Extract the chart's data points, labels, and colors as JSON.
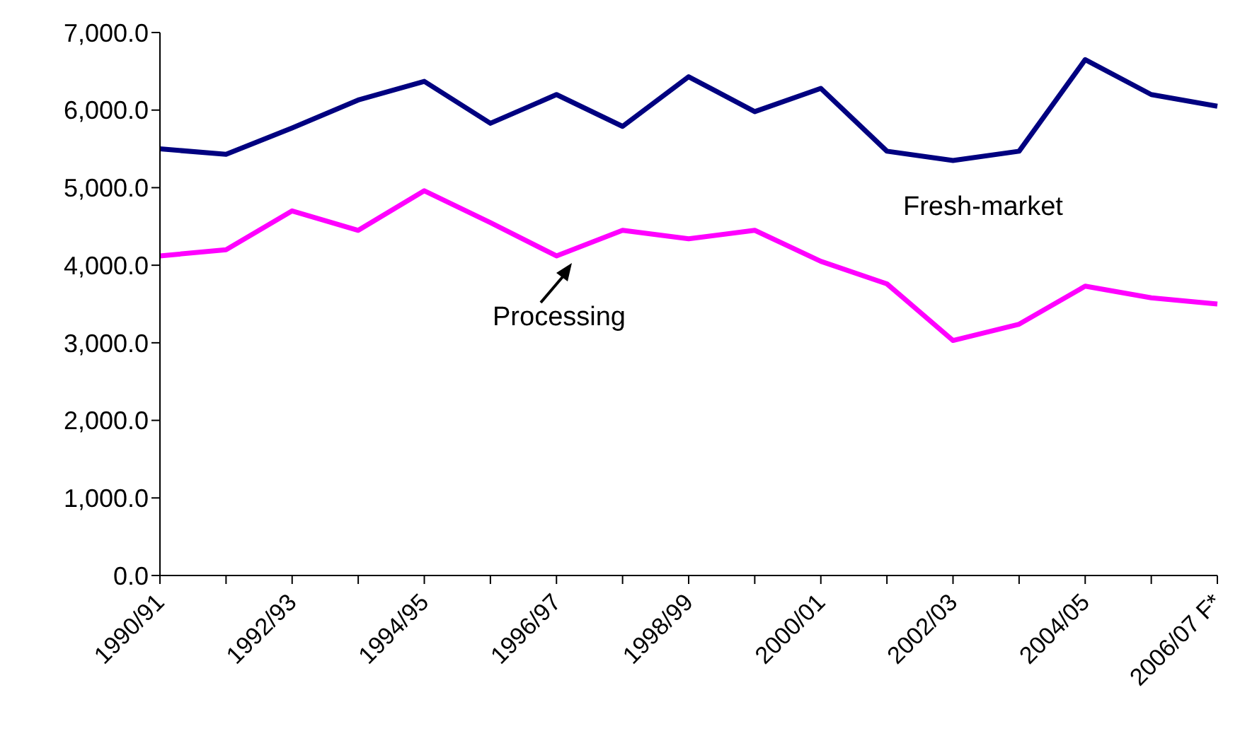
{
  "chart_data": {
    "type": "line",
    "categories": [
      "1990/91",
      null,
      "1992/93",
      null,
      "1994/95",
      null,
      "1996/97",
      null,
      "1998/99",
      null,
      "2000/01",
      null,
      "2002/03",
      null,
      "2004/05",
      null,
      "2006/07 F*"
    ],
    "series": [
      {
        "name": "Fresh-market",
        "color": "#000080",
        "values": [
          5500,
          5430,
          5770,
          6130,
          6370,
          5830,
          6200,
          5790,
          6430,
          5980,
          6280,
          5470,
          5350,
          5470,
          6650,
          6200,
          6050
        ]
      },
      {
        "name": "Processing",
        "color": "#ff00ff",
        "values": [
          4120,
          4200,
          4700,
          4450,
          4960,
          4550,
          4120,
          4450,
          4340,
          4450,
          4050,
          3760,
          3030,
          3240,
          3730,
          3580,
          3500
        ]
      }
    ],
    "ylim": [
      0,
      7000
    ],
    "yticks": [
      {
        "value": 0,
        "label": "0.0"
      },
      {
        "value": 1000,
        "label": "1,000.0"
      },
      {
        "value": 2000,
        "label": "2,000.0"
      },
      {
        "value": 3000,
        "label": "3,000.0"
      },
      {
        "value": 4000,
        "label": "4,000.0"
      },
      {
        "value": 5000,
        "label": "5,000.0"
      },
      {
        "value": 6000,
        "label": "6,000.0"
      },
      {
        "value": 7000,
        "label": "7,000.0"
      }
    ],
    "grid": false,
    "legend": false,
    "marker": "none",
    "line_style": "solid"
  }
}
